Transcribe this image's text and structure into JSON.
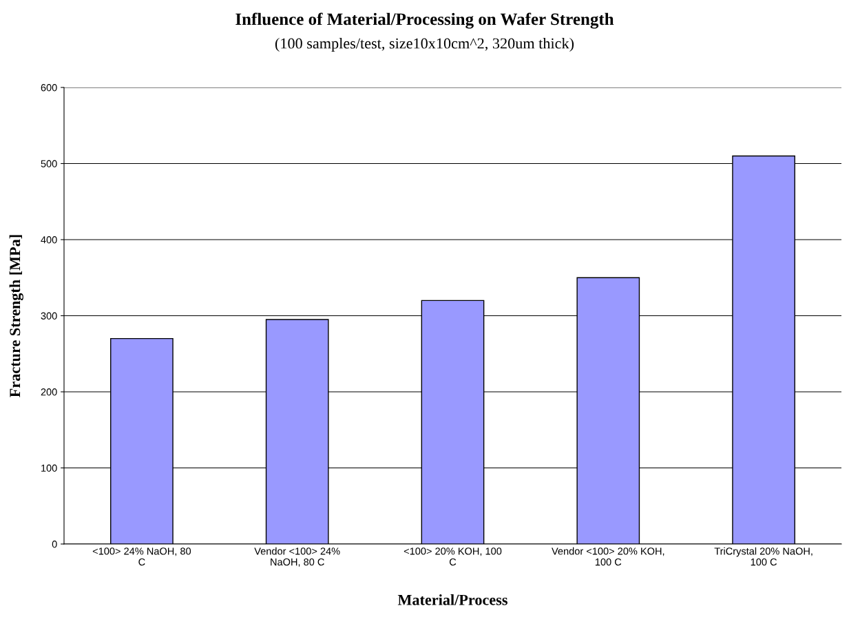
{
  "chart_data": {
    "type": "bar",
    "title": "Influence of Material/Processing on Wafer Strength",
    "subtitle": "(100 samples/test, size10x10cm^2, 320um thick)",
    "xlabel": "Material/Process",
    "ylabel": "Fracture Strength [MPa]",
    "categories": [
      "<100> 24% NaOH, 80\nC",
      "Vendor <100> 24%\nNaOH, 80 C",
      "<100> 20% KOH, 100\nC",
      "Vendor <100> 20% KOH,\n100 C",
      "TriCrystal 20% NaOH,\n100 C"
    ],
    "values": [
      270,
      295,
      320,
      350,
      510
    ],
    "color": "#9999ff",
    "ylim": [
      0,
      600
    ],
    "yticks": [
      0,
      100,
      200,
      300,
      400,
      500,
      600
    ],
    "grid": "y",
    "legend": false
  }
}
